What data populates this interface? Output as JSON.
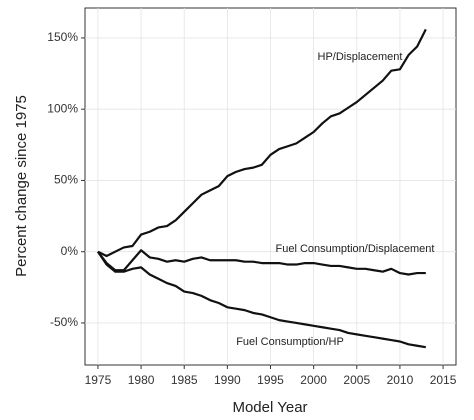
{
  "chart_data": {
    "type": "line",
    "xlabel": "Model Year",
    "ylabel": "Percent change since 1975",
    "x": [
      1975,
      1976,
      1977,
      1978,
      1979,
      1980,
      1981,
      1982,
      1983,
      1984,
      1985,
      1986,
      1987,
      1988,
      1989,
      1990,
      1991,
      1992,
      1993,
      1994,
      1995,
      1996,
      1997,
      1998,
      1999,
      2000,
      2001,
      2002,
      2003,
      2004,
      2005,
      2006,
      2007,
      2008,
      2009,
      2010,
      2011,
      2012,
      2013
    ],
    "series": [
      {
        "name": "HP/Displacement",
        "color": "#111111",
        "values": [
          0,
          -3,
          0,
          3,
          4,
          12,
          14,
          17,
          18,
          22,
          28,
          34,
          40,
          43,
          46,
          53,
          56,
          58,
          59,
          61,
          68,
          72,
          74,
          76,
          80,
          84,
          90,
          95,
          97,
          101,
          105,
          110,
          115,
          120,
          127,
          128,
          138,
          144,
          156
        ]
      },
      {
        "name": "Fuel Consumption/Displacement",
        "color": "#111111",
        "values": [
          0,
          -8,
          -13,
          -13,
          -6,
          1,
          -4,
          -5,
          -7,
          -6,
          -7,
          -5,
          -4,
          -6,
          -6,
          -6,
          -6,
          -7,
          -7,
          -8,
          -8,
          -8,
          -9,
          -9,
          -8,
          -8,
          -9,
          -10,
          -10,
          -11,
          -12,
          -12,
          -13,
          -14,
          -12,
          -15,
          -16,
          -15,
          -15
        ]
      },
      {
        "name": "Fuel Consumption/HP",
        "color": "#111111",
        "values": [
          0,
          -9,
          -14,
          -14,
          -12,
          -11,
          -16,
          -19,
          -22,
          -24,
          -28,
          -29,
          -31,
          -34,
          -36,
          -39,
          -40,
          -41,
          -43,
          -44,
          -46,
          -48,
          -49,
          -50,
          -51,
          -52,
          -53,
          -54,
          -55,
          -57,
          -58,
          -59,
          -60,
          -61,
          -62,
          -63,
          -65,
          -66,
          -67
        ]
      }
    ],
    "xlim": [
      1973.5,
      2016.5
    ],
    "xticks": [
      1975,
      1980,
      1985,
      1990,
      1995,
      2000,
      2005,
      2010,
      2015
    ],
    "ylim": [
      -79.5,
      171
    ],
    "yticks": [
      {
        "value": -50,
        "label": "-50%"
      },
      {
        "value": 0,
        "label": "0%"
      },
      {
        "value": 50,
        "label": "50%"
      },
      {
        "value": 100,
        "label": "100%"
      },
      {
        "value": 150,
        "label": "150%"
      }
    ],
    "grid": true
  }
}
